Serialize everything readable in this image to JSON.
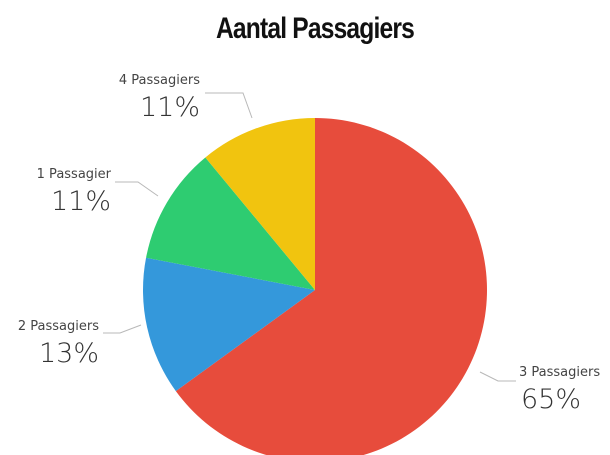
{
  "chart_data": {
    "type": "pie",
    "title": "Aantal Passagiers",
    "slices": [
      {
        "label": "3 Passagiers",
        "pct_label": "65%",
        "value": 65,
        "color": "#e74c3c"
      },
      {
        "label": "2 Passagiers",
        "pct_label": "13%",
        "value": 13,
        "color": "#3498db"
      },
      {
        "label": "1 Passagier",
        "pct_label": "11%",
        "value": 11,
        "color": "#2ecc71"
      },
      {
        "label": "4 Passagiers",
        "pct_label": "11%",
        "value": 11,
        "color": "#f1c40f"
      }
    ],
    "start_at": "top",
    "direction": "clockwise"
  }
}
